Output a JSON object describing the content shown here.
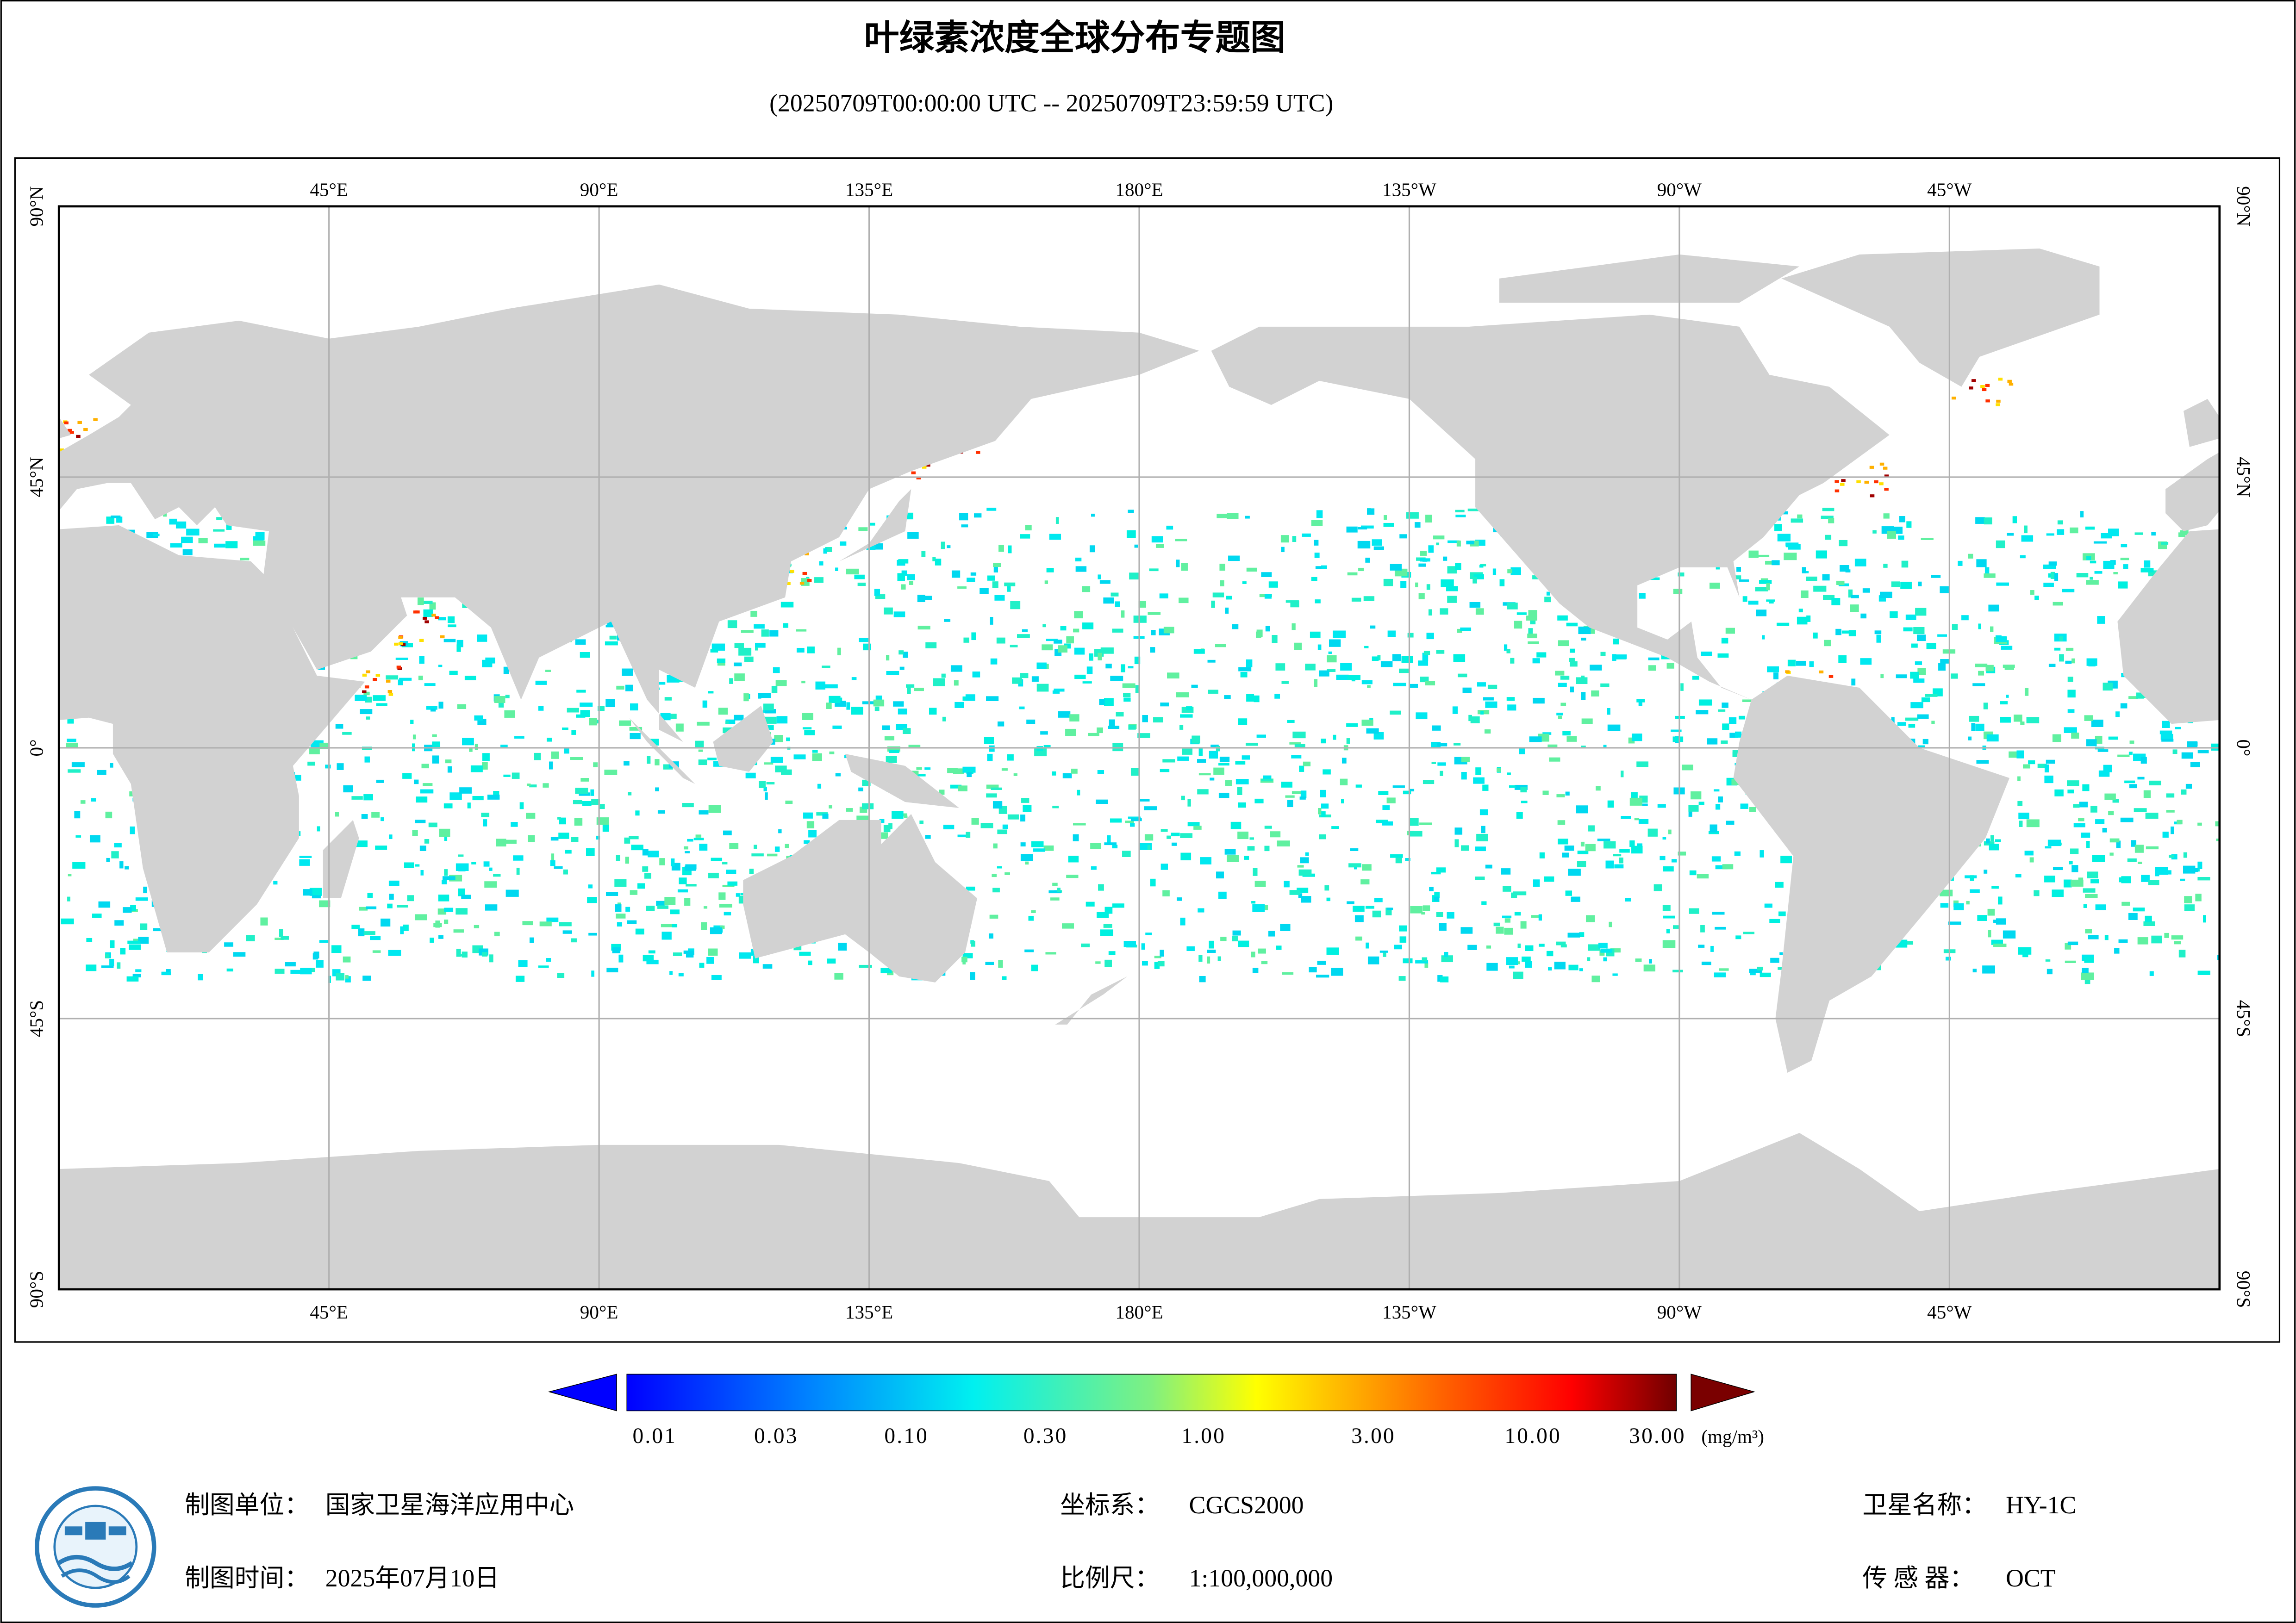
{
  "header": {
    "title": "叶绿素浓度全球分布专题图",
    "subtitle": "(20250709T00:00:00 UTC -- 20250709T23:59:59 UTC)"
  },
  "map": {
    "lon_labels": [
      "45°E",
      "90°E",
      "135°E",
      "180°E",
      "135°W",
      "90°W",
      "45°W"
    ],
    "lat_labels": [
      "90°N",
      "45°N",
      "0°",
      "45°S",
      "90°S"
    ]
  },
  "legend": {
    "labels": [
      "0.01",
      "0.03",
      "0.10",
      "0.30",
      "1.00",
      "3.00",
      "10.00",
      "30.00"
    ],
    "unit": "(mg/m³)"
  },
  "footer": {
    "producer_label": "制图单位：",
    "producer": "国家卫星海洋应用中心",
    "time_label": "制图时间：",
    "time": "2025年07月10日",
    "crs_label": "坐标系：",
    "crs": "CGCS2000",
    "scale_label": "比例尺：",
    "scale": "1:100,000,000",
    "satellite_label": "卫星名称：",
    "satellite": "HY-1C",
    "sensor_label": "传 感 器：",
    "sensor": "OCT"
  }
}
